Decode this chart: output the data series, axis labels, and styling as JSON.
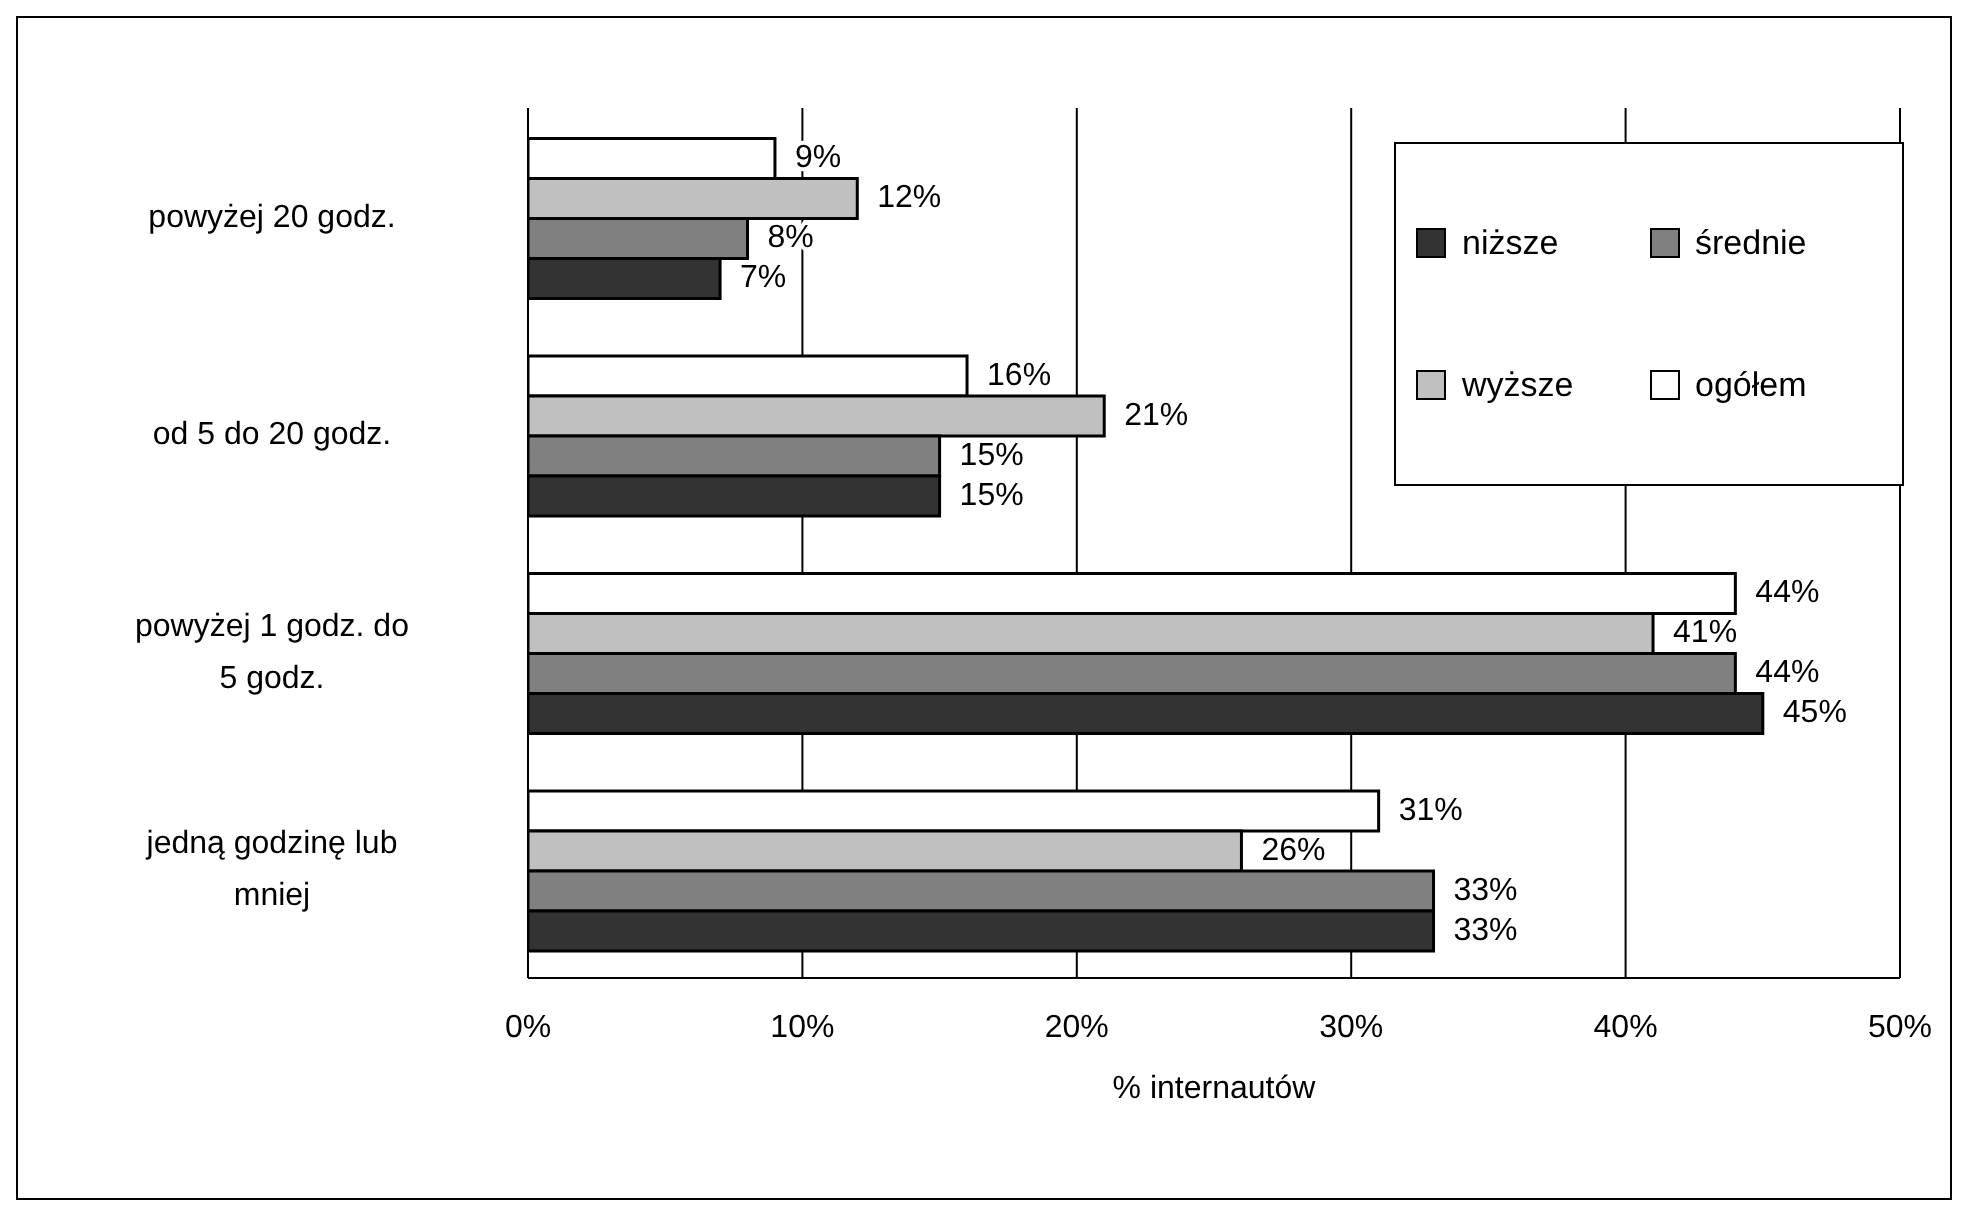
{
  "chart_data": {
    "type": "bar",
    "orientation": "horizontal",
    "categories": [
      "powyżej 20 godz.",
      "od 5 do 20 godz.",
      "powyżej 1 godz. do 5 godz.",
      "jedną godzinę lub mniej"
    ],
    "series": [
      {
        "name": "niższe",
        "color": "#333333",
        "values": [
          7,
          15,
          45,
          33
        ],
        "value_labels": [
          "7%",
          "15%",
          "45%",
          "33%"
        ]
      },
      {
        "name": "średnie",
        "color": "#808080",
        "values": [
          8,
          15,
          44,
          33
        ],
        "value_labels": [
          "8%",
          "15%",
          "44%",
          "33%"
        ]
      },
      {
        "name": "wyższe",
        "color": "#c0c0c0",
        "values": [
          12,
          21,
          41,
          26
        ],
        "value_labels": [
          "12%",
          "21%",
          "41%",
          "26%"
        ]
      },
      {
        "name": "ogółem",
        "color": "#ffffff",
        "values": [
          9,
          16,
          44,
          31
        ],
        "value_labels": [
          "9%",
          "16%",
          "44%",
          "31%"
        ]
      }
    ],
    "xlim": [
      0,
      50
    ],
    "xticks": [
      {
        "value": 0,
        "label": "0%"
      },
      {
        "value": 10,
        "label": "10%"
      },
      {
        "value": 20,
        "label": "20%"
      },
      {
        "value": 30,
        "label": "30%"
      },
      {
        "value": 40,
        "label": "40%"
      },
      {
        "value": 50,
        "label": "50%"
      }
    ],
    "xlabel": "% internautów",
    "grid": "x",
    "legend": "top right"
  }
}
